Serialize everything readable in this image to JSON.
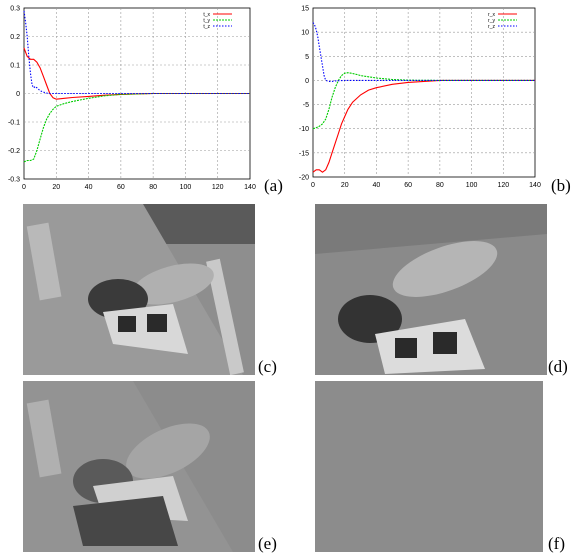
{
  "labels": {
    "a": "(a)",
    "b": "(b)",
    "c": "(c)",
    "d": "(d)",
    "e": "(e)",
    "f": "(f)"
  },
  "colors": {
    "series1": "#ff0000",
    "series2": "#00cc00",
    "series3": "#0000ff",
    "grid": "#9a9a9a",
    "flat_image": "#8c8c8c"
  },
  "chart_data": [
    {
      "type": "line",
      "title": "",
      "xlabel": "",
      "ylabel": "",
      "xlim": [
        0,
        140
      ],
      "ylim": [
        -0.3,
        0.3
      ],
      "xticks": [
        0,
        20,
        40,
        60,
        80,
        100,
        120,
        140
      ],
      "yticks": [
        -0.3,
        -0.2,
        -0.1,
        0,
        0.1,
        0.2,
        0.3
      ],
      "grid": true,
      "legend": "top-right",
      "series": [
        {
          "name": "t_x",
          "color": "#ff0000",
          "x": [
            0,
            2,
            4,
            6,
            8,
            10,
            12,
            14,
            16,
            18,
            20,
            25,
            30,
            40,
            50,
            60,
            80,
            100,
            140
          ],
          "y": [
            0.16,
            0.13,
            0.12,
            0.12,
            0.11,
            0.09,
            0.06,
            0.03,
            0.0,
            -0.015,
            -0.02,
            -0.017,
            -0.014,
            -0.01,
            -0.006,
            -0.003,
            0,
            0,
            0
          ]
        },
        {
          "name": "t_y",
          "color": "#00cc00",
          "x": [
            0,
            2,
            4,
            6,
            8,
            10,
            12,
            14,
            16,
            18,
            20,
            25,
            30,
            40,
            50,
            60,
            80,
            100,
            140
          ],
          "y": [
            -0.24,
            -0.235,
            -0.235,
            -0.23,
            -0.2,
            -0.16,
            -0.12,
            -0.09,
            -0.07,
            -0.055,
            -0.045,
            -0.035,
            -0.028,
            -0.017,
            -0.008,
            -0.003,
            0,
            0,
            0
          ]
        },
        {
          "name": "t_z",
          "color": "#0000ff",
          "x": [
            0,
            1,
            2,
            3,
            4,
            5,
            6,
            7,
            8,
            10,
            12,
            15,
            20,
            40,
            140
          ],
          "y": [
            0.29,
            0.25,
            0.2,
            0.13,
            0.07,
            0.03,
            0.02,
            0.025,
            0.02,
            0.01,
            0.005,
            0.0,
            0,
            0,
            0
          ]
        }
      ]
    },
    {
      "type": "line",
      "title": "",
      "xlabel": "",
      "ylabel": "",
      "xlim": [
        0,
        140
      ],
      "ylim": [
        -20,
        15
      ],
      "xticks": [
        0,
        20,
        40,
        60,
        80,
        100,
        120,
        140
      ],
      "yticks": [
        -20,
        -15,
        -10,
        -5,
        0,
        5,
        10,
        15
      ],
      "grid": true,
      "legend": "top-right",
      "series": [
        {
          "name": "r_x",
          "color": "#ff0000",
          "x": [
            0,
            2,
            4,
            6,
            8,
            10,
            12,
            14,
            16,
            18,
            20,
            22,
            25,
            30,
            35,
            40,
            50,
            60,
            80,
            100,
            140
          ],
          "y": [
            -19,
            -18.5,
            -18.5,
            -19,
            -18.5,
            -17,
            -15,
            -13,
            -11,
            -9,
            -7.5,
            -6,
            -4.5,
            -3,
            -2,
            -1.5,
            -0.8,
            -0.4,
            0,
            0,
            0
          ]
        },
        {
          "name": "r_y",
          "color": "#00cc00",
          "x": [
            0,
            2,
            4,
            6,
            8,
            10,
            12,
            14,
            16,
            18,
            20,
            22,
            24,
            28,
            30,
            40,
            50,
            60,
            80,
            140
          ],
          "y": [
            -10,
            -9.8,
            -9.5,
            -9,
            -8,
            -6,
            -3.5,
            -1.5,
            0,
            1,
            1.5,
            1.6,
            1.5,
            1.2,
            1,
            0.5,
            0.2,
            0.05,
            0,
            0
          ]
        },
        {
          "name": "r_z",
          "color": "#0000ff",
          "x": [
            0,
            1,
            2,
            3,
            4,
            5,
            6,
            7,
            8,
            10,
            12,
            14,
            20,
            40,
            140
          ],
          "y": [
            12,
            11.5,
            10.5,
            9,
            7,
            5,
            3,
            1,
            0,
            -0.2,
            -0.2,
            -0.1,
            0,
            0,
            0
          ]
        }
      ]
    }
  ]
}
